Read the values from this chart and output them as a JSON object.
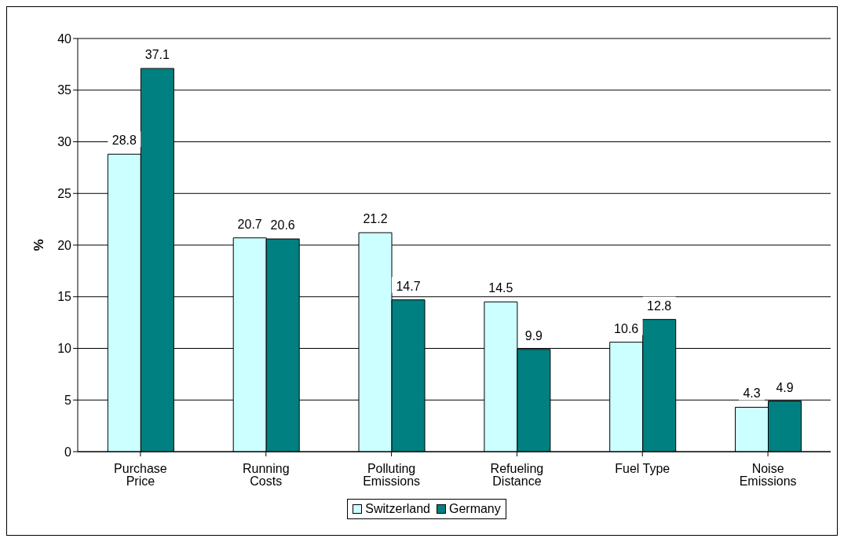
{
  "chart_data": {
    "type": "bar",
    "ylabel": "%",
    "categories": [
      "Purchase Price",
      "Running Costs",
      "Polluting Emissions",
      "Refueling Distance",
      "Fuel Type",
      "Noise Emissions"
    ],
    "series": [
      {
        "name": "Switzerland",
        "color": "#ccffff",
        "values": [
          28.8,
          20.7,
          21.2,
          14.5,
          10.6,
          4.3
        ]
      },
      {
        "name": "Germany",
        "color": "#008080",
        "values": [
          37.1,
          20.6,
          14.7,
          9.9,
          12.8,
          4.9
        ]
      }
    ],
    "ylim": [
      0,
      40
    ],
    "yticks": [
      0,
      5,
      10,
      15,
      20,
      25,
      30,
      35,
      40
    ],
    "grid": "y",
    "legend": "bottom",
    "data_labels": true
  }
}
